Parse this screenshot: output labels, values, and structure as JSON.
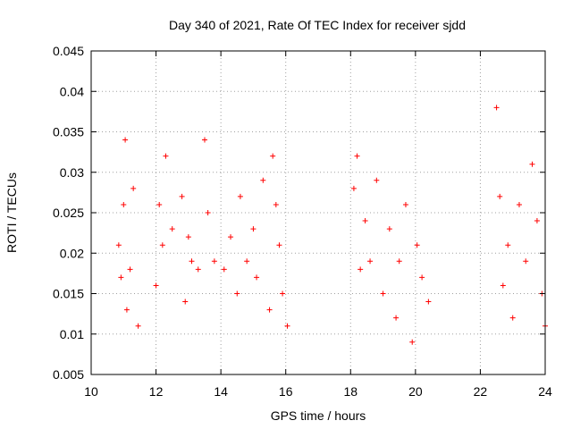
{
  "chart_data": {
    "type": "scatter",
    "title": "Day 340 of 2021, Rate Of TEC Index for receiver sjdd",
    "xlabel": "GPS time / hours",
    "ylabel": "ROTI / TECUs",
    "xlim": [
      10,
      24
    ],
    "ylim": [
      0.005,
      0.045
    ],
    "xticks": [
      10,
      12,
      14,
      16,
      18,
      20,
      22,
      24
    ],
    "xtick_labels": [
      "10",
      "12",
      "14",
      "16",
      "18",
      "20",
      "22",
      "24"
    ],
    "yticks": [
      0.005,
      0.01,
      0.015,
      0.02,
      0.025,
      0.03,
      0.035,
      0.04,
      0.045
    ],
    "ytick_labels": [
      "0.005",
      "0.01",
      "0.015",
      "0.02",
      "0.025",
      "0.03",
      "0.035",
      "0.04",
      "0.045"
    ],
    "grid": true,
    "marker": "+",
    "color": "#ff0000",
    "series": [
      {
        "name": "ROTI",
        "x": [
          10.85,
          10.92,
          11.0,
          11.05,
          11.1,
          11.2,
          11.3,
          11.45,
          12.0,
          12.1,
          12.2,
          12.3,
          12.5,
          12.8,
          12.9,
          13.0,
          13.1,
          13.3,
          13.5,
          13.6,
          13.8,
          14.1,
          14.3,
          14.5,
          14.6,
          14.8,
          15.0,
          15.1,
          15.3,
          15.5,
          15.6,
          15.7,
          15.8,
          15.9,
          16.05,
          18.1,
          18.2,
          18.3,
          18.45,
          18.6,
          18.8,
          19.0,
          19.2,
          19.4,
          19.5,
          19.7,
          19.9,
          20.05,
          20.2,
          20.4,
          22.5,
          22.6,
          22.7,
          22.85,
          23.0,
          23.2,
          23.4,
          23.6,
          23.75,
          23.9,
          24.0
        ],
        "y": [
          0.021,
          0.017,
          0.026,
          0.034,
          0.013,
          0.018,
          0.028,
          0.011,
          0.016,
          0.026,
          0.021,
          0.032,
          0.023,
          0.027,
          0.014,
          0.022,
          0.019,
          0.018,
          0.034,
          0.025,
          0.019,
          0.018,
          0.022,
          0.015,
          0.027,
          0.019,
          0.023,
          0.017,
          0.029,
          0.013,
          0.032,
          0.026,
          0.021,
          0.015,
          0.011,
          0.028,
          0.032,
          0.018,
          0.024,
          0.019,
          0.029,
          0.015,
          0.023,
          0.012,
          0.019,
          0.026,
          0.009,
          0.021,
          0.017,
          0.014,
          0.038,
          0.027,
          0.016,
          0.021,
          0.012,
          0.026,
          0.019,
          0.031,
          0.024,
          0.015,
          0.011
        ]
      }
    ]
  }
}
